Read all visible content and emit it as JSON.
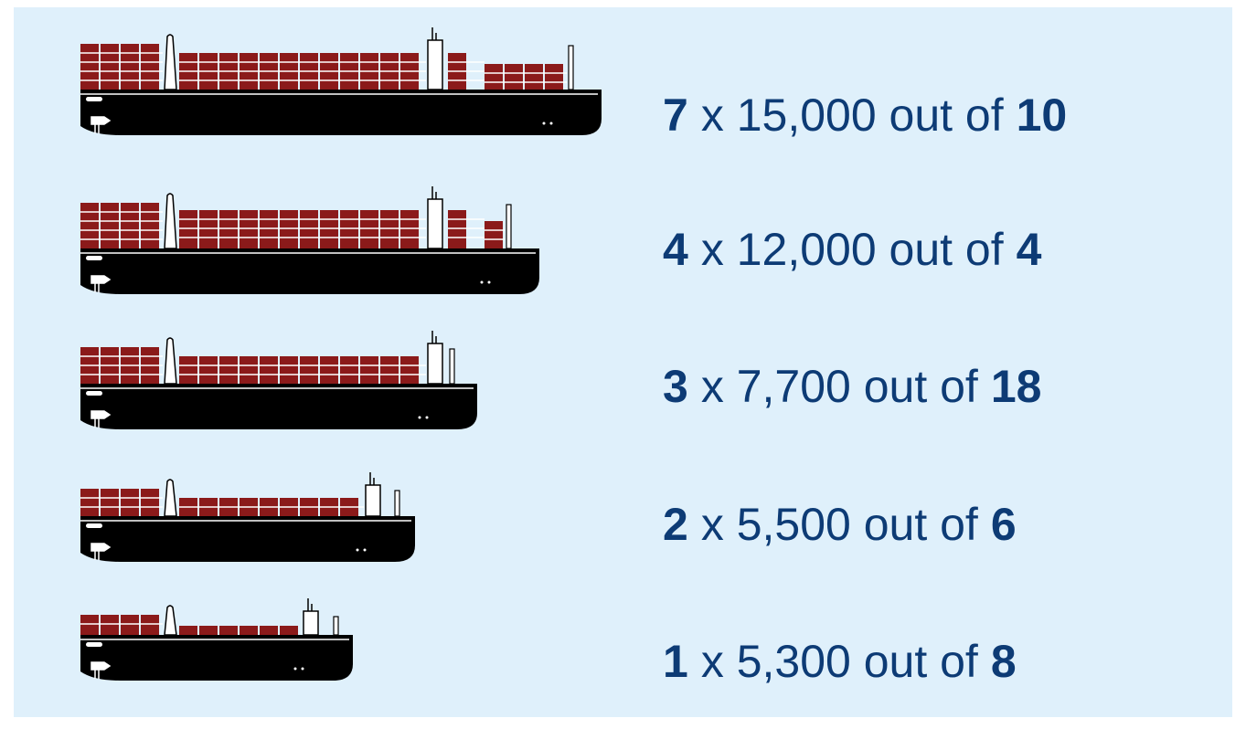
{
  "rows": [
    {
      "count": 7,
      "label": "x 15,000 out of",
      "total": 10
    },
    {
      "count": 4,
      "label": "x 12,000 out of",
      "total": 4
    },
    {
      "count": 3,
      "label": "x 7,700 out of",
      "total": 18
    },
    {
      "count": 2,
      "label": "x 5,500 out of",
      "total": 6
    },
    {
      "count": 1,
      "label": "x 5,300 out of",
      "total": 8
    }
  ]
}
